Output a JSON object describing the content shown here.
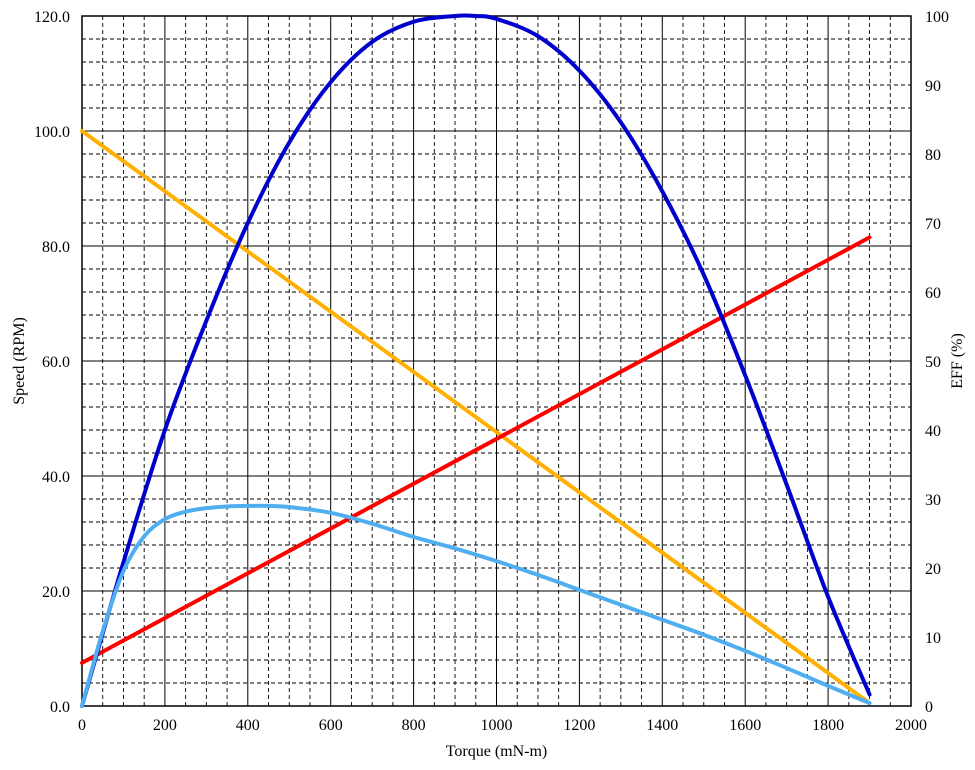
{
  "chart_data": {
    "type": "line",
    "title": "",
    "xlabel": "Torque (mN-m)",
    "ylabel": "Speed (RPM)",
    "y2label": "EFF (%)",
    "xlim": [
      0,
      2000
    ],
    "ylim": [
      0,
      120
    ],
    "y2lim": [
      0,
      100
    ],
    "x_ticks": [
      0,
      200,
      400,
      600,
      800,
      1000,
      1200,
      1400,
      1600,
      1800,
      2000
    ],
    "y_ticks": [
      "0.0",
      "20.0",
      "40.0",
      "60.0",
      "80.0",
      "100.0",
      "120.0"
    ],
    "y2_ticks": [
      "0",
      "10",
      "20",
      "30",
      "40",
      "50",
      "60",
      "70",
      "80",
      "90",
      "100"
    ],
    "grid": {
      "major": "solid",
      "minor": "dashed",
      "x_minor_step": 50,
      "y_minor_step": 4
    },
    "series": [
      {
        "color": "#ffb000",
        "axis": "left",
        "x": [
          0,
          1900
        ],
        "values": [
          100.0,
          0.5
        ]
      },
      {
        "color": "#ff0000",
        "axis": "left",
        "x": [
          0,
          1900
        ],
        "values": [
          7.5,
          81.5
        ]
      },
      {
        "color": "#0000cc",
        "axis": "left",
        "x": [
          0,
          100,
          200,
          300,
          400,
          500,
          600,
          700,
          800,
          900,
          950,
          1000,
          1100,
          1200,
          1300,
          1400,
          1500,
          1600,
          1700,
          1800,
          1900
        ],
        "values": [
          0,
          25,
          48,
          67,
          84,
          98,
          108.5,
          115.5,
          119,
          120,
          120,
          119.5,
          116.5,
          110.5,
          101.5,
          89.5,
          75,
          57.5,
          38.5,
          19,
          2
        ]
      },
      {
        "color": "#4faef0",
        "axis": "left",
        "x": [
          0,
          50,
          100,
          150,
          200,
          250,
          300,
          350,
          400,
          450,
          500,
          600,
          700,
          800,
          900,
          1000,
          1100,
          1200,
          1300,
          1400,
          1500,
          1600,
          1700,
          1800,
          1900
        ],
        "values": [
          0,
          13,
          23.5,
          29.5,
          32.5,
          33.8,
          34.4,
          34.7,
          34.8,
          34.8,
          34.6,
          33.6,
          31.7,
          29.4,
          27.4,
          25.2,
          22.8,
          20.2,
          17.6,
          15.0,
          12.4,
          9.6,
          6.6,
          3.5,
          0.5
        ]
      }
    ]
  }
}
